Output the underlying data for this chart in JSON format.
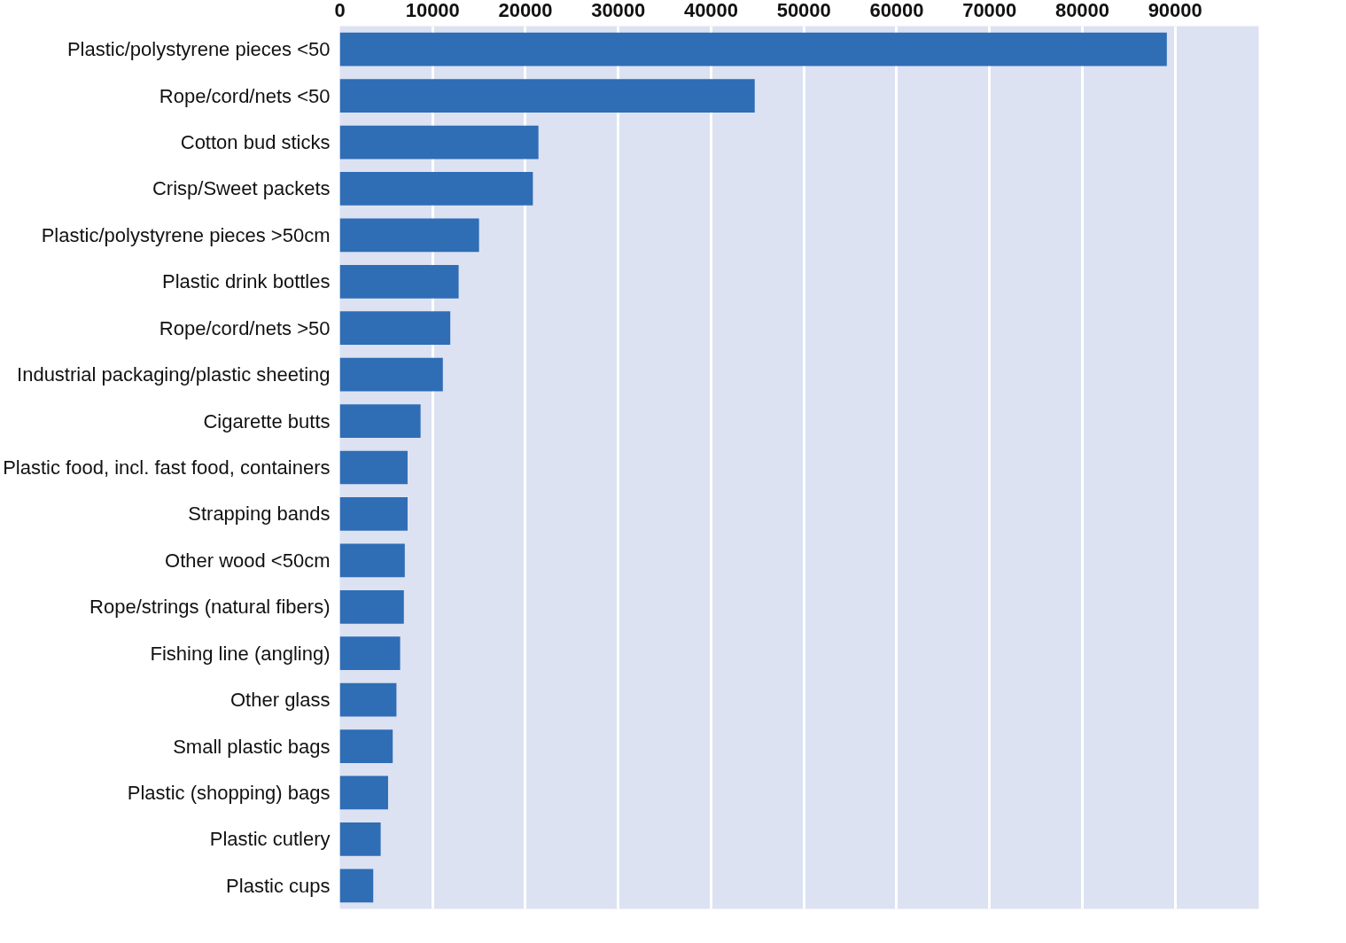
{
  "chart_data": {
    "type": "bar",
    "orientation": "horizontal",
    "categories": [
      "Plastic/polystyrene pieces <50",
      "Rope/cord/nets <50",
      "Cotton bud sticks",
      "Crisp/Sweet packets",
      "Plastic/polystyrene pieces >50cm",
      "Plastic drink bottles",
      "Rope/cord/nets >50",
      "Industrial packaging/plastic sheeting",
      "Cigarette butts",
      "Plastic food, incl. fast food, containers",
      "Strapping bands",
      "Other wood <50cm",
      "Rope/strings (natural fibers)",
      "Fishing line (angling)",
      "Other glass",
      "Small plastic bags",
      "Plastic (shopping) bags",
      "Plastic cutlery",
      "Plastic cups"
    ],
    "values": [
      89100,
      44700,
      21400,
      20800,
      15000,
      12800,
      11900,
      11100,
      8700,
      7300,
      7300,
      7000,
      6900,
      6500,
      6100,
      5700,
      5200,
      4400,
      3600
    ],
    "color": "#2f6db5",
    "xlim": [
      0,
      99000
    ],
    "xticks": [
      0,
      10000,
      20000,
      30000,
      40000,
      50000,
      60000,
      70000,
      80000,
      90000
    ],
    "grid": "x"
  }
}
